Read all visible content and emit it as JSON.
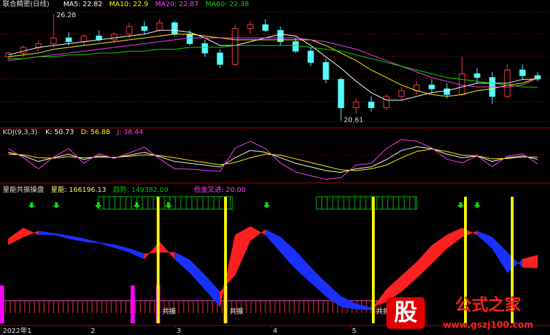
{
  "chart_data": [
    {
      "type": "candlestick",
      "title": "联合精密(日线)",
      "ylim": [
        20.3,
        26.5
      ],
      "up_color": "#ff3c3c",
      "down_color": "#54fcfc",
      "candles": {
        "open": [
          24.0,
          24.2,
          24.5,
          24.7,
          25.0,
          24.8,
          25.1,
          24.9,
          25.2,
          25.6,
          25.4,
          25.8,
          25.2,
          24.7,
          24.2,
          23.6,
          25.5,
          25.7,
          25.4,
          24.8,
          24.3,
          23.7,
          22.8,
          21.3,
          21.6,
          21.3,
          21.9,
          22.2,
          22.5,
          22.3,
          22.0,
          23.1,
          22.9,
          21.9,
          23.3,
          23.0
        ],
        "high": [
          24.3,
          24.6,
          24.9,
          26.28,
          25.3,
          25.2,
          25.4,
          25.3,
          25.8,
          25.9,
          26.0,
          25.9,
          25.4,
          24.9,
          24.4,
          25.7,
          25.9,
          26.0,
          25.6,
          25.0,
          24.5,
          23.9,
          22.9,
          21.8,
          21.9,
          22.0,
          22.4,
          22.7,
          22.8,
          22.6,
          24.0,
          23.4,
          23.2,
          23.6,
          23.6,
          23.2
        ],
        "low": [
          23.8,
          24.0,
          24.3,
          24.5,
          24.6,
          24.6,
          24.8,
          24.7,
          25.0,
          25.2,
          25.3,
          25.1,
          24.6,
          24.0,
          23.4,
          23.5,
          25.2,
          25.3,
          24.6,
          24.2,
          23.5,
          22.6,
          20.61,
          21.0,
          21.1,
          21.2,
          21.7,
          22.0,
          22.1,
          21.8,
          21.9,
          22.6,
          21.5,
          21.8,
          22.8,
          22.7
        ],
        "close": [
          24.2,
          24.5,
          24.7,
          25.0,
          24.8,
          25.1,
          24.9,
          25.2,
          25.6,
          25.4,
          25.8,
          25.2,
          24.7,
          24.2,
          23.6,
          25.5,
          25.7,
          25.4,
          24.8,
          24.3,
          23.7,
          22.8,
          21.3,
          21.6,
          21.3,
          21.9,
          22.2,
          22.5,
          22.3,
          22.0,
          23.1,
          22.9,
          21.9,
          23.3,
          23.0,
          22.82
        ]
      },
      "series": [
        {
          "name": "MA5:",
          "color": "#ffffff",
          "values": [
            24.1,
            24.3,
            24.5,
            24.6,
            24.7,
            24.8,
            24.9,
            25.0,
            25.1,
            25.2,
            25.4,
            25.4,
            25.3,
            25.0,
            24.6,
            24.6,
            24.8,
            25.0,
            25.2,
            25.1,
            24.6,
            24.0,
            23.4,
            22.7,
            22.1,
            21.7,
            21.7,
            21.9,
            22.1,
            22.2,
            22.4,
            22.6,
            22.6,
            22.6,
            22.8,
            22.82
          ]
        },
        {
          "name": "MA10:",
          "color": "#ffff00",
          "values": [
            24.0,
            24.1,
            24.2,
            24.4,
            24.5,
            24.6,
            24.7,
            24.8,
            24.9,
            25.0,
            25.1,
            25.2,
            25.2,
            25.1,
            25.0,
            24.9,
            24.9,
            24.9,
            24.9,
            24.9,
            24.9,
            24.6,
            24.2,
            23.8,
            23.3,
            22.9,
            22.5,
            22.2,
            22.0,
            21.9,
            22.0,
            22.2,
            22.3,
            22.5,
            22.6,
            22.9
          ]
        },
        {
          "name": "MA20:",
          "color": "#ff40ff",
          "values": [
            23.8,
            23.9,
            24.0,
            24.1,
            24.2,
            24.3,
            24.4,
            24.5,
            24.6,
            24.7,
            24.8,
            24.9,
            25.0,
            25.0,
            25.0,
            25.0,
            25.0,
            25.0,
            25.0,
            25.0,
            24.9,
            24.8,
            24.6,
            24.4,
            24.1,
            23.8,
            23.5,
            23.2,
            22.9,
            22.7,
            22.5,
            22.4,
            22.4,
            22.4,
            22.5,
            22.87
          ]
        },
        {
          "name": "MA60:",
          "color": "#00e000",
          "values": [
            23.9,
            23.9,
            24.0,
            24.0,
            24.1,
            24.1,
            24.2,
            24.2,
            24.3,
            24.3,
            24.4,
            24.4,
            24.5,
            24.5,
            24.5,
            24.6,
            24.6,
            24.6,
            24.6,
            24.6,
            24.5,
            24.4,
            24.3,
            24.1,
            23.9,
            23.7,
            23.5,
            23.3,
            23.1,
            22.9,
            22.8,
            22.7,
            22.6,
            22.5,
            22.4,
            22.38
          ]
        }
      ]
    },
    {
      "type": "line",
      "title": "KDJ(9,3,3)",
      "ylim": [
        -10,
        110
      ],
      "series": [
        {
          "name": "K:",
          "color": "#ffffff",
          "values": [
            70,
            60,
            45,
            55,
            65,
            50,
            60,
            55,
            62,
            70,
            58,
            45,
            40,
            35,
            30,
            55,
            75,
            70,
            55,
            40,
            30,
            20,
            15,
            25,
            30,
            50,
            75,
            85,
            80,
            65,
            55,
            60,
            45,
            55,
            60,
            50.73
          ]
        },
        {
          "name": "D:",
          "color": "#ffff00",
          "values": [
            65,
            63,
            55,
            54,
            58,
            55,
            57,
            56,
            59,
            63,
            61,
            55,
            48,
            42,
            36,
            42,
            55,
            65,
            62,
            52,
            42,
            32,
            22,
            20,
            25,
            35,
            55,
            72,
            79,
            72,
            62,
            60,
            52,
            53,
            57,
            56.88
          ]
        },
        {
          "name": "J:",
          "color": "#ff40ff",
          "values": [
            80,
            55,
            25,
            57,
            80,
            40,
            66,
            53,
            68,
            84,
            52,
            25,
            24,
            21,
            18,
            81,
            100,
            80,
            41,
            16,
            6,
            -4,
            1,
            35,
            40,
            80,
            105,
            100,
            82,
            51,
            41,
            60,
            31,
            59,
            66,
            38.44
          ]
        }
      ]
    },
    {
      "type": "band",
      "title": "星能共振操盘",
      "ylim": [
        80000,
        245000
      ],
      "up_color": "#ff2020",
      "down_color": "#1a30ff",
      "annotation": "低金叉进: 20.00",
      "signal_labels": [
        "共振",
        "共振",
        "共振"
      ],
      "series": [
        {
          "name": "星能:",
          "color": "#ffff60",
          "values": [
            188000,
            202000,
            193000,
            193000,
            188000,
            184000,
            182000,
            176000,
            170000,
            161000,
            184000,
            161000,
            143000,
            121000,
            98000,
            193000,
            204000,
            193000,
            170000,
            148000,
            130000,
            112000,
            98000,
            95000,
            94000,
            121000,
            139000,
            157000,
            179000,
            193000,
            202000,
            193000,
            175000,
            143000,
            161000,
            166196.13
          ]
        },
        {
          "name": "趋势:",
          "color": "#00c000",
          "values": [
            180000,
            190000,
            198000,
            195000,
            192000,
            188000,
            183000,
            180000,
            175000,
            168000,
            170000,
            170000,
            160000,
            140000,
            118000,
            140000,
            185000,
            200000,
            190000,
            172000,
            150000,
            130000,
            112000,
            102000,
            97000,
            105000,
            118000,
            136000,
            155000,
            175000,
            190000,
            198000,
            190000,
            170000,
            150000,
            149382.09
          ]
        }
      ]
    }
  ],
  "x_axis": {
    "labels": [
      "2022年1",
      "2",
      "3",
      "4",
      "5"
    ]
  },
  "watermark": {
    "logo": "股",
    "name": "公式之家",
    "url": "www.gszj100.com"
  }
}
